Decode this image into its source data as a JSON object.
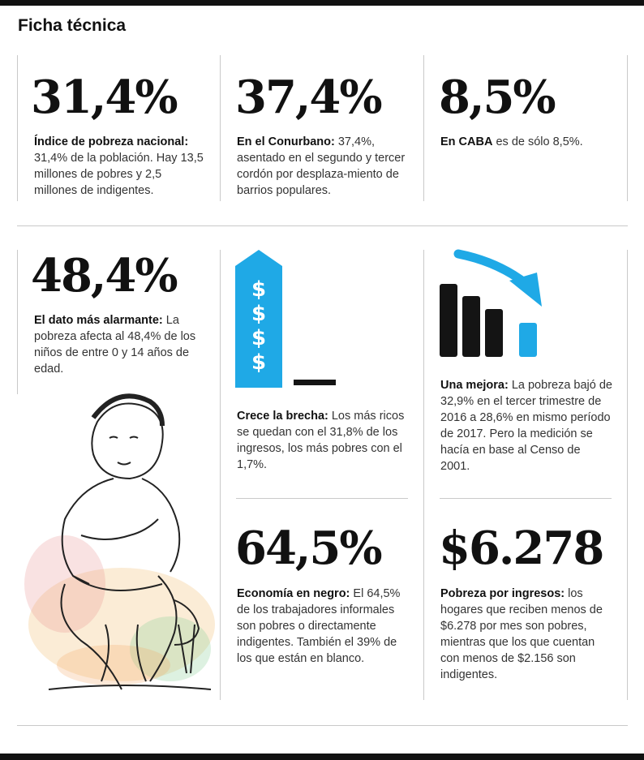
{
  "title": "Ficha técnica",
  "colors": {
    "accent": "#1fa9e6",
    "dark": "#141414",
    "rule": "#c9c9c9"
  },
  "stats": [
    {
      "value": "31,4%",
      "lead": "Índice de pobreza nacional:",
      "text": " 31,4% de la población. Hay 13,5 millones de pobres y 2,5 millones de indigentes."
    },
    {
      "value": "37,4%",
      "lead": "En el Conurbano:",
      "text": " 37,4%, asentado en el segundo y tercer cordón por desplaza-miento de barrios populares."
    },
    {
      "value": "8,5%",
      "lead": "En CABA",
      "text": " es de sólo 8,5%."
    },
    {
      "value": "48,4%",
      "lead": "El dato más alarmante:",
      "text": " La pobreza afecta al 48,4% de los niños de entre 0 y 14 años de edad."
    },
    {
      "lead": "Crece la brecha:",
      "text": " Los más ricos se quedan con el 31,8% de los ingresos, los más pobres con el 1,7%."
    },
    {
      "lead": "Una mejora:",
      "text": " La pobreza bajó de 32,9% en el tercer trimestre de 2016 a 28,6% en mismo período de 2017. Pero la medición se hacía en base al Censo de 2001."
    },
    {
      "value": "64,5%",
      "lead": "Economía en negro:",
      "text": " El 64,5% de los trabajadores informales son pobres o directamente indigentes. También el 39% de los que están en blanco."
    },
    {
      "value": "$6.278",
      "lead": "Pobreza por ingresos:",
      "text": " los hogares que reciben menos de $6.278 por mes son pobres, mientras que los que cuentan con menos de $2.156 son indigentes."
    }
  ],
  "dollar_symbol": "$",
  "icons": {
    "gap": "rising-dollar-arrow-icon",
    "trend": "declining-bars-icon",
    "illustration": "child-sketch-illustration"
  }
}
